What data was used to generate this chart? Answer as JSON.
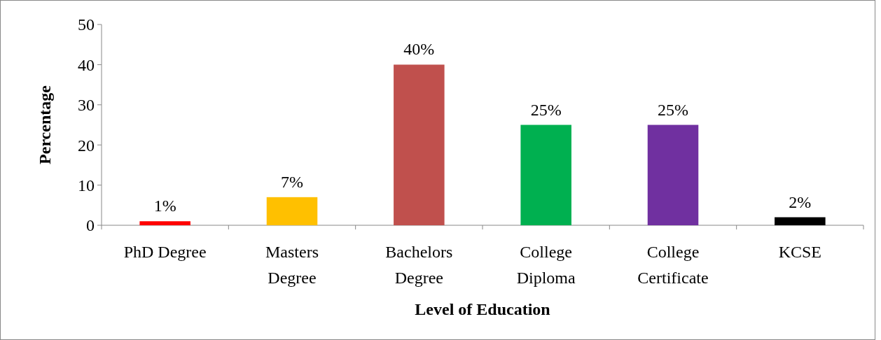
{
  "chart_data": {
    "type": "bar",
    "xlabel": "Level of Education",
    "ylabel": "Percentage",
    "categories": [
      "PhD Degree",
      "Masters Degree",
      "Bachelors Degree",
      "College Diploma",
      "College Certificate",
      "KCSE"
    ],
    "values": [
      1,
      7,
      40,
      25,
      25,
      2
    ],
    "colors": [
      "#ff0000",
      "#ffc000",
      "#c0504d",
      "#00b050",
      "#7030a0",
      "#000000"
    ],
    "value_labels": [
      "1%",
      "7%",
      "40%",
      "25%",
      "25%",
      "2%"
    ],
    "ylim": [
      0,
      50
    ],
    "yticks": [
      0,
      10,
      20,
      30,
      40,
      50
    ],
    "grid": false
  }
}
